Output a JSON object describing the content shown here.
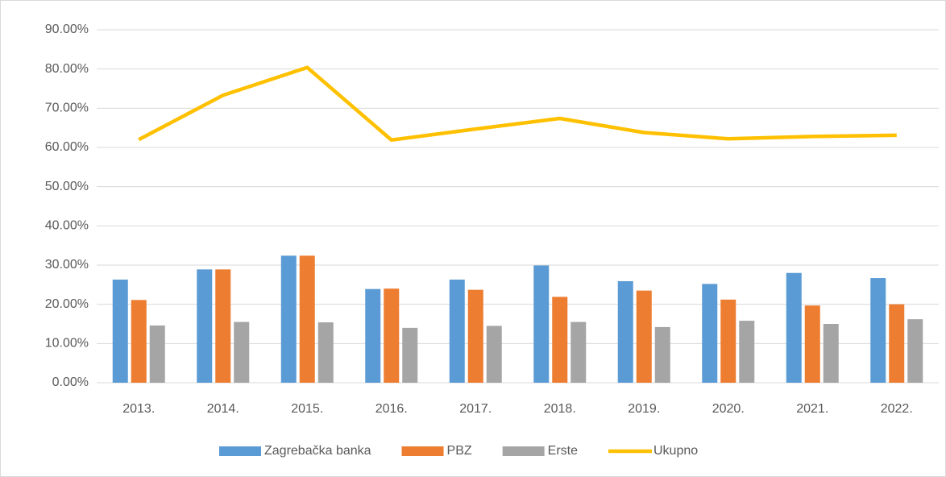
{
  "chart_data": {
    "type": "bar",
    "categories": [
      "2013.",
      "2014.",
      "2015.",
      "2016.",
      "2017.",
      "2018.",
      "2019.",
      "2020.",
      "2021.",
      "2022."
    ],
    "series": [
      {
        "name": "Zagrebačka banka",
        "type": "bar",
        "color": "#5b9bd5",
        "values": [
          26.3,
          28.9,
          32.4,
          23.9,
          26.3,
          29.9,
          25.9,
          25.2,
          28.0,
          26.7
        ]
      },
      {
        "name": "PBZ",
        "type": "bar",
        "color": "#ed7d31",
        "values": [
          21.1,
          28.9,
          32.4,
          24.0,
          23.7,
          21.9,
          23.5,
          21.2,
          19.7,
          20.0
        ]
      },
      {
        "name": "Erste",
        "type": "bar",
        "color": "#a5a5a5",
        "values": [
          14.6,
          15.5,
          15.4,
          14.0,
          14.5,
          15.5,
          14.2,
          15.8,
          15.0,
          16.2
        ]
      },
      {
        "name": "Ukupno",
        "type": "line",
        "color": "#ffc000",
        "values": [
          62.0,
          73.3,
          80.4,
          61.9,
          64.7,
          67.4,
          63.8,
          62.2,
          62.8,
          63.1
        ]
      }
    ],
    "ylim": [
      0,
      90
    ],
    "yticks": [
      {
        "value": 0,
        "label": "0.00%"
      },
      {
        "value": 10,
        "label": "10.00%"
      },
      {
        "value": 20,
        "label": "20.00%"
      },
      {
        "value": 30,
        "label": "30.00%"
      },
      {
        "value": 40,
        "label": "40.00%"
      },
      {
        "value": 50,
        "label": "50.00%"
      },
      {
        "value": 60,
        "label": "60.00%"
      },
      {
        "value": 70,
        "label": "70.00%"
      },
      {
        "value": 80,
        "label": "80.00%"
      },
      {
        "value": 90,
        "label": "90.00%"
      }
    ],
    "grid": true,
    "legend": "bottom"
  }
}
